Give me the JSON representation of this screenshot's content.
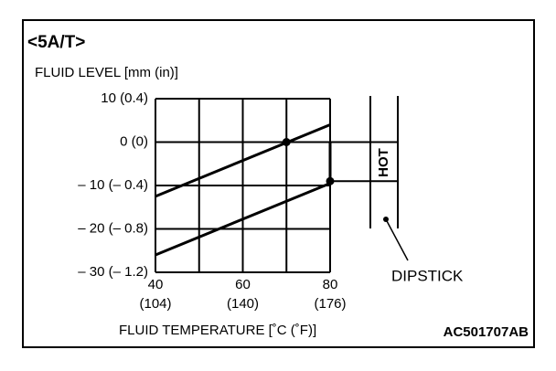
{
  "chart_data": {
    "type": "line",
    "title": "<5A/T>",
    "y_label": "FLUID LEVEL [mm (in)]",
    "x_label": "FLUID TEMPERATURE [˚C (˚F)]",
    "x": [
      40,
      80
    ],
    "series": [
      {
        "color": "#000000",
        "values": [
          -12.5,
          4
        ]
      },
      {
        "color": "#000000",
        "values": [
          -26,
          -9.5
        ]
      }
    ],
    "points": {
      "x": [
        70,
        80
      ],
      "values": [
        0,
        -9
      ]
    },
    "xlim": [
      40,
      80
    ],
    "ylim": [
      -30,
      10
    ],
    "xticks": [
      40,
      60,
      80
    ],
    "xtick_sublabels": [
      "(104)",
      "(140)",
      "(176)"
    ],
    "xgrid": [
      40,
      50,
      60,
      70,
      80
    ],
    "yticks": [
      {
        "value": 10,
        "label": "10 (0.4)"
      },
      {
        "value": 0,
        "label": "0 (0)"
      },
      {
        "value": -10,
        "label": "– 10 (– 0.4)"
      },
      {
        "value": -20,
        "label": "– 20 (– 0.8)"
      },
      {
        "value": -30,
        "label": "– 30 (– 1.2)"
      }
    ],
    "grid": true,
    "annotations": {
      "hot": "HOT",
      "dipstick": "DIPSTICK",
      "code": "AC501707AB"
    }
  }
}
